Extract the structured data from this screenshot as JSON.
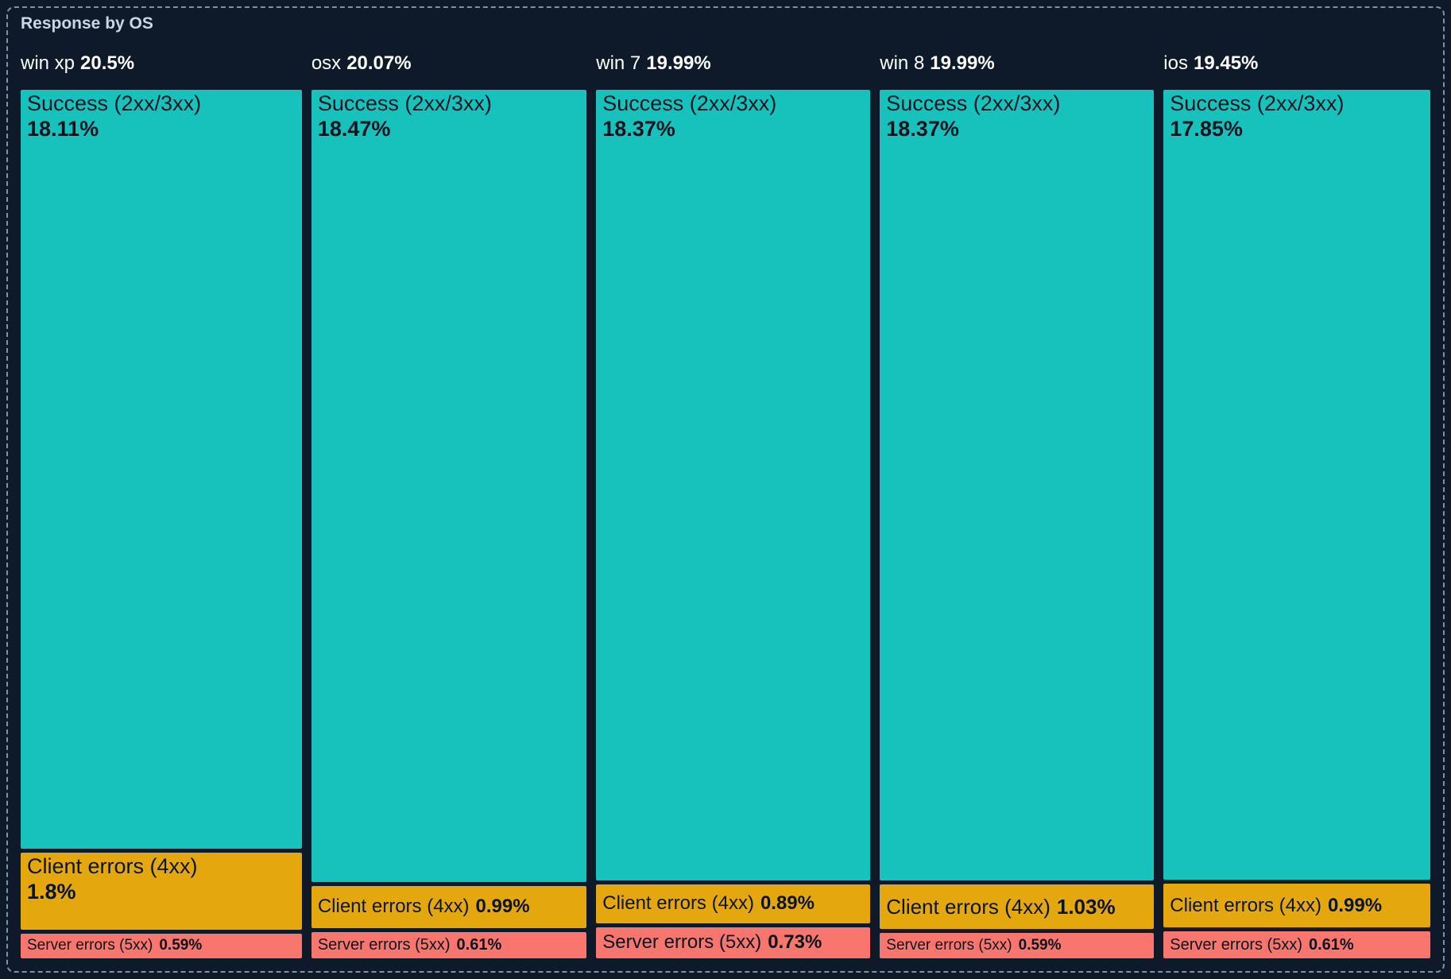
{
  "panel": {
    "title": "Response by OS",
    "colors": {
      "bg": "#0e1a29",
      "border": "#7e92a9",
      "title": "#ccd5e1",
      "header": "#ffffff",
      "text": "#0a141f",
      "success": "#17c2bd",
      "client": "#e5a70e",
      "server": "#f8766d"
    }
  },
  "chart_data": {
    "type": "treemap",
    "title": "Response by OS",
    "layout": "columns-by-os, vertical segments by response class, areas proportional to percent of total traffic",
    "legend": [
      "Success (2xx/3xx)",
      "Client errors (4xx)",
      "Server errors (5xx)"
    ],
    "groups": [
      {
        "os": "win xp",
        "total": "20.5%",
        "share": 20.5,
        "segments": [
          {
            "label": "Success (2xx/3xx)",
            "display": "18.11%",
            "value": 18.11,
            "category": "success"
          },
          {
            "label": "Client errors (4xx)",
            "display": "1.8%",
            "value": 1.8,
            "category": "client"
          },
          {
            "label": "Server errors (5xx)",
            "display": "0.59%",
            "value": 0.59,
            "category": "server"
          }
        ]
      },
      {
        "os": "osx",
        "total": "20.07%",
        "share": 20.07,
        "segments": [
          {
            "label": "Success (2xx/3xx)",
            "display": "18.47%",
            "value": 18.47,
            "category": "success"
          },
          {
            "label": "Client errors (4xx)",
            "display": "0.99%",
            "value": 0.99,
            "category": "client"
          },
          {
            "label": "Server errors (5xx)",
            "display": "0.61%",
            "value": 0.61,
            "category": "server"
          }
        ]
      },
      {
        "os": "win 7",
        "total": "19.99%",
        "share": 19.99,
        "segments": [
          {
            "label": "Success (2xx/3xx)",
            "display": "18.37%",
            "value": 18.37,
            "category": "success"
          },
          {
            "label": "Client errors (4xx)",
            "display": "0.89%",
            "value": 0.89,
            "category": "client"
          },
          {
            "label": "Server errors (5xx)",
            "display": "0.73%",
            "value": 0.73,
            "category": "server"
          }
        ]
      },
      {
        "os": "win 8",
        "total": "19.99%",
        "share": 19.99,
        "segments": [
          {
            "label": "Success (2xx/3xx)",
            "display": "18.37%",
            "value": 18.37,
            "category": "success"
          },
          {
            "label": "Client errors (4xx)",
            "display": "1.03%",
            "value": 1.03,
            "category": "client"
          },
          {
            "label": "Server errors (5xx)",
            "display": "0.59%",
            "value": 0.59,
            "category": "server"
          }
        ]
      },
      {
        "os": "ios",
        "total": "19.45%",
        "share": 19.45,
        "segments": [
          {
            "label": "Success (2xx/3xx)",
            "display": "17.85%",
            "value": 17.85,
            "category": "success"
          },
          {
            "label": "Client errors (4xx)",
            "display": "0.99%",
            "value": 0.99,
            "category": "client"
          },
          {
            "label": "Server errors (5xx)",
            "display": "0.61%",
            "value": 0.61,
            "category": "server"
          }
        ]
      }
    ]
  }
}
